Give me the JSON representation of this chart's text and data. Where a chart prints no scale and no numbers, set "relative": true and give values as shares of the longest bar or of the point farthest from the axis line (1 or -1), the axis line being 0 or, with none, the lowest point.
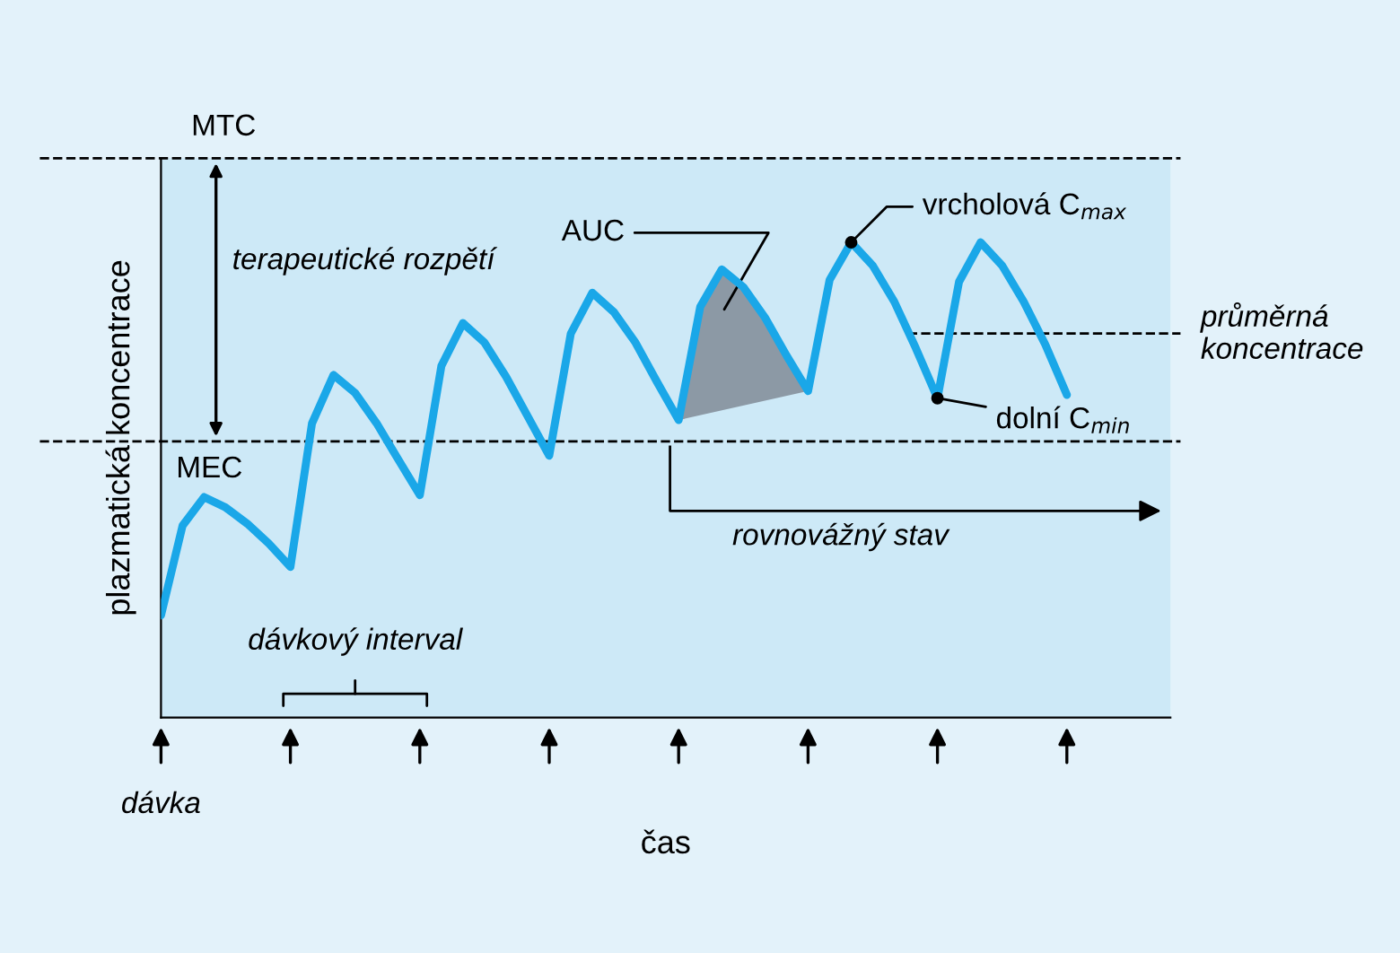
{
  "chart_data": {
    "type": "line",
    "relative": true,
    "xlabel": "čas",
    "ylabel": "plazmatická koncentrace",
    "categories": [
      null,
      null,
      null,
      null,
      null,
      null,
      null,
      null,
      null,
      null,
      null,
      null,
      null,
      null,
      null,
      null,
      null,
      null,
      null,
      null,
      null,
      null,
      null,
      null,
      null,
      null,
      null,
      null,
      null,
      null,
      null,
      null,
      null,
      null,
      null,
      null,
      null,
      null,
      null,
      null,
      null,
      null,
      null
    ],
    "series": [
      {
        "color": "#1aa7e8",
        "values": [
          0.215,
          0.404,
          0.464,
          0.442,
          0.408,
          0.366,
          0.317,
          0.619,
          0.721,
          0.683,
          0.619,
          0.543,
          0.468,
          0.74,
          0.83,
          0.789,
          0.717,
          0.634,
          0.551,
          0.808,
          0.894,
          0.853,
          0.789,
          0.706,
          0.626,
          0.864,
          0.943,
          0.906,
          0.842,
          0.762,
          0.687,
          0.921,
          1,
          0.951,
          0.875,
          0.777,
          0.672,
          0.917,
          1,
          0.951,
          0.875,
          0.785,
          0.679
        ]
      },
      {
        "type": "area",
        "color": "#8c99a5",
        "values": [
          null,
          null,
          null,
          null,
          null,
          null,
          null,
          null,
          null,
          null,
          null,
          null,
          null,
          null,
          null,
          null,
          null,
          null,
          null,
          null,
          null,
          null,
          null,
          null,
          0.626,
          0.864,
          0.943,
          0.906,
          0.842,
          0.762,
          0.687,
          null,
          null,
          null,
          null,
          null,
          null,
          null,
          null,
          null,
          null,
          null,
          null
        ]
      }
    ],
    "ref_lines": [
      {
        "axis": "y",
        "value": 1.177,
        "label": "MTC",
        "line_style": "dashed",
        "color": "#000000"
      },
      {
        "axis": "y",
        "value": 0.581,
        "label": "MEC",
        "line_style": "dashed",
        "color": "#000000"
      },
      {
        "axis": "y",
        "value": 0.808,
        "label": "průměrná koncentrace",
        "line_style": "dashed",
        "color": "#000000"
      }
    ],
    "annotations": [
      "terapeutické rozpětí",
      "AUC",
      "vrcholová C$_{max}$",
      "dolní C$_{min}$",
      "rovnovážný stav",
      "dávkový interval",
      "dávka"
    ],
    "line_style": "solid",
    "marker": "none"
  }
}
